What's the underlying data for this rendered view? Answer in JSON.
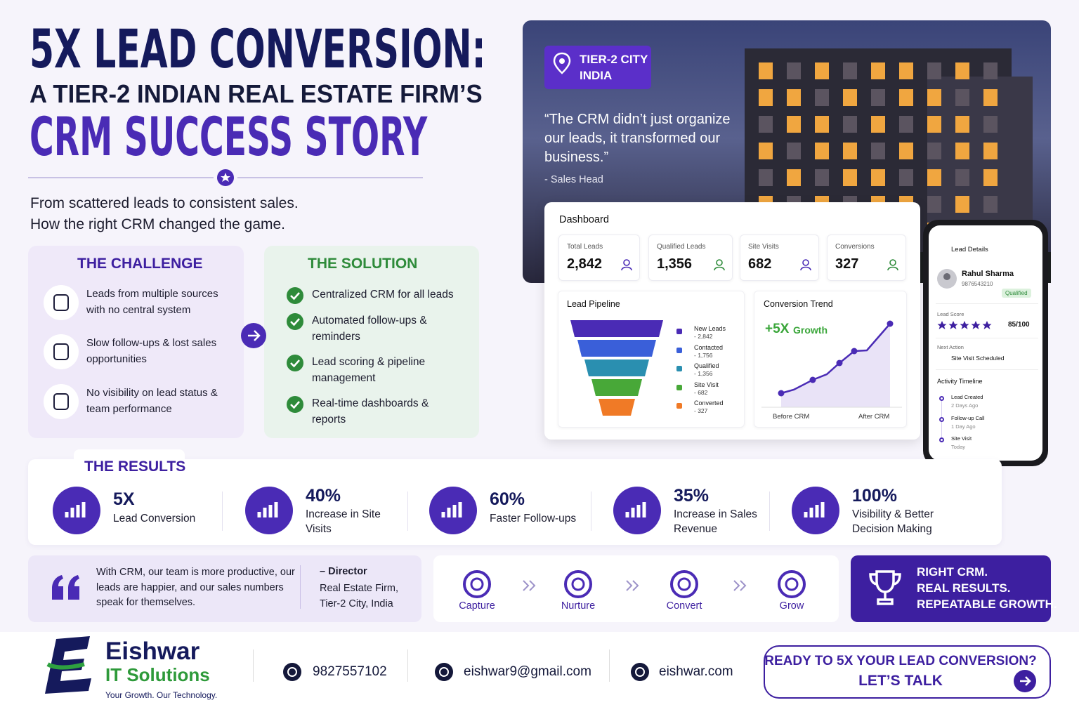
{
  "header": {
    "title_line1": "5X LEAD CONVERSION:",
    "title_line2": "A TIER-2 INDIAN REAL ESTATE FIRM’S",
    "title_line3": "CRM SUCCESS STORY",
    "subtitle": [
      "From scattered leads to consistent sales.",
      "How the right CRM changed the game."
    ]
  },
  "hero": {
    "badge": [
      "TIER-2 CITY",
      "INDIA"
    ],
    "quote": "“The CRM didn’t just organize our leads, it transformed our business.”",
    "attribution": "- Sales Head"
  },
  "challenge": {
    "title": "THE CHALLENGE",
    "items": [
      "Leads from multiple sources with no central system",
      "Slow follow-ups & lost sales opportunities",
      "No visibility on lead status & team performance"
    ]
  },
  "solution": {
    "title": "THE SOLUTION",
    "items": [
      "Centralized CRM for all leads",
      "Automated follow-ups & reminders",
      "Lead scoring & pipeline management",
      "Real-time dashboards & reports"
    ]
  },
  "dashboard": {
    "title": "Dashboard",
    "stats": [
      {
        "label": "Total Leads",
        "value": "2,842"
      },
      {
        "label": "Qualified Leads",
        "value": "1,356"
      },
      {
        "label": "Site Visits",
        "value": "682"
      },
      {
        "label": "Conversions",
        "value": "327"
      }
    ],
    "pipeline": {
      "title": "Lead Pipeline",
      "stages": [
        {
          "name": "New Leads",
          "value": "- 2,842"
        },
        {
          "name": "Contacted",
          "value": "- 1,756"
        },
        {
          "name": "Qualified",
          "value": "- 1,356"
        },
        {
          "name": "Site Visit",
          "value": "- 682"
        },
        {
          "name": "Converted",
          "value": "- 327"
        }
      ]
    },
    "trend": {
      "title": "Conversion Trend",
      "growth_value": "+5X",
      "growth_label": "Growth",
      "x_labels": [
        "Before CRM",
        "After CRM"
      ]
    }
  },
  "phone": {
    "header": "Lead Details",
    "name": "Rahul Sharma",
    "number": "9876543210",
    "status": "Qualified",
    "score_label": "Lead Score",
    "score": "85/100",
    "next_action_label": "Next Action",
    "next_action": "Site Visit Scheduled",
    "timeline_title": "Activity Timeline",
    "timeline": [
      {
        "event": "Lead Created",
        "time": "2 Days Ago"
      },
      {
        "event": "Follow-up Call",
        "time": "1 Day Ago"
      },
      {
        "event": "Site Visit",
        "time": "Today"
      }
    ]
  },
  "results": {
    "title": "THE RESULTS",
    "items": [
      {
        "value": "5X",
        "label": "Lead Conversion"
      },
      {
        "value": "40%",
        "label": "Increase in Site Visits"
      },
      {
        "value": "60%",
        "label": "Faster Follow-ups"
      },
      {
        "value": "35%",
        "label": "Increase in Sales Revenue"
      },
      {
        "value": "100%",
        "label": "Visibility & Better Decision Making"
      }
    ]
  },
  "testimonial": {
    "quote": "With CRM, our team is more productive, our leads are happier, and our sales numbers speak for themselves.",
    "author": "– Director",
    "organization": "Real Estate Firm, Tier-2 City, India"
  },
  "process": {
    "steps": [
      "Capture",
      "Nurture",
      "Convert",
      "Grow"
    ]
  },
  "tagline": [
    "RIGHT CRM.",
    "REAL RESULTS.",
    "REPEATABLE GROWTH."
  ],
  "footer": {
    "brand": "Eishwar",
    "brand_sub": "IT Solutions",
    "slogan": "Your Growth. Our Technology.",
    "phone": "9827557102",
    "email": "eishwar9@gmail.com",
    "website": "eishwar.com",
    "cta": [
      "READY TO 5X YOUR LEAD CONVERSION?",
      "LET’S TALK"
    ]
  }
}
